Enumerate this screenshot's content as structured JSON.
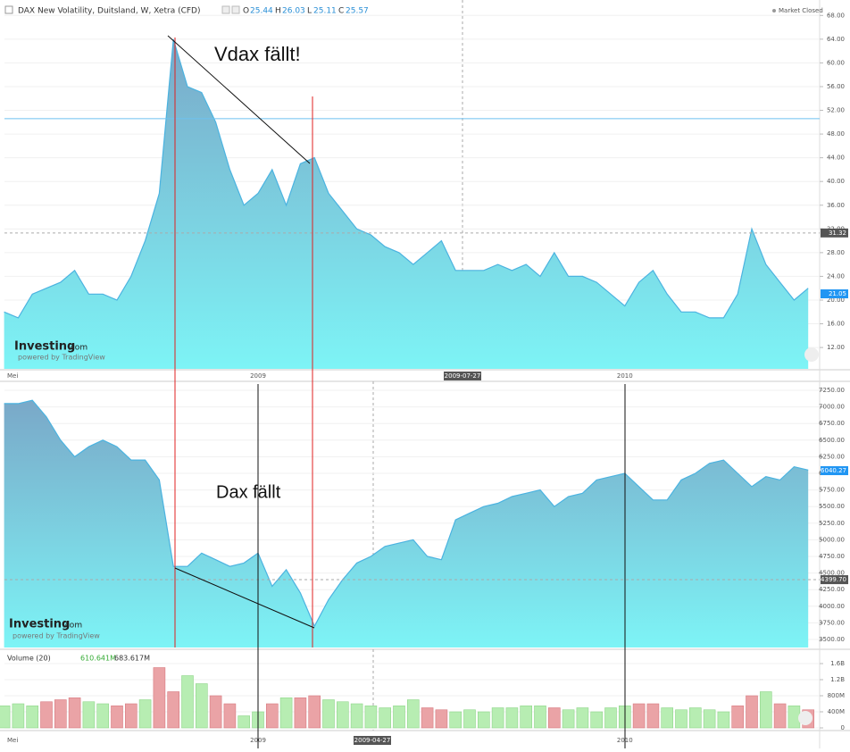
{
  "header": {
    "title": "DAX New Volatility, Duitsland, W, Xetra (CFD)",
    "o_label": "O",
    "open": 25.44,
    "h_label": "H",
    "high": 26.03,
    "l_label": "L",
    "low": 25.11,
    "c_label": "C",
    "close": 25.57,
    "status": "Market Closed"
  },
  "logo": {
    "name": "Investing",
    "domain": ".com",
    "tagline": "powered by TradingView"
  },
  "volume_header": {
    "title": "Volume (20)",
    "value": "610.641M",
    "average": "683.617M"
  },
  "chart_data": [
    {
      "type": "area",
      "annotation": "Vdax fällt!",
      "color": "#4bb3e0",
      "cursor_x_label": "2009-07-27",
      "categories": [
        "Mei",
        null,
        null,
        null,
        null,
        null,
        null,
        null,
        null,
        null,
        null,
        null,
        null,
        null,
        null,
        null,
        null,
        null,
        "2009",
        null,
        null,
        null,
        null,
        null,
        null,
        null,
        null,
        null,
        null,
        null,
        null,
        null,
        null,
        null,
        null,
        null,
        null,
        null,
        null,
        null,
        null,
        null,
        null,
        null,
        "2010",
        null,
        null,
        null,
        null,
        null,
        null,
        null,
        null,
        null,
        null,
        null,
        null,
        null
      ],
      "values": [
        18,
        17,
        21,
        22,
        23,
        25,
        21,
        21,
        20,
        24,
        30,
        38,
        64,
        56,
        55,
        50,
        42,
        36,
        38,
        42,
        36,
        43,
        44,
        38,
        35,
        32,
        31,
        29,
        28,
        26,
        28,
        30,
        25,
        25,
        25,
        26,
        25,
        26,
        24,
        28,
        24,
        24,
        23,
        21,
        19,
        23,
        25,
        21,
        18,
        18,
        17,
        17,
        21,
        32,
        26,
        23,
        20,
        22
      ],
      "ylim": [
        8.4,
        69.1
      ],
      "yticks": [
        {
          "value": 12,
          "label": "12.00"
        },
        {
          "value": 16,
          "label": "16.00"
        },
        {
          "value": 20,
          "label": "20.00"
        },
        {
          "value": 24,
          "label": "24.00"
        },
        {
          "value": 28,
          "label": "28.00"
        },
        {
          "value": 32,
          "label": "32.00"
        },
        {
          "value": 36,
          "label": "36.00"
        },
        {
          "value": 40,
          "label": "40.00"
        },
        {
          "value": 44,
          "label": "44.00"
        },
        {
          "value": 48,
          "label": "48.00"
        },
        {
          "value": 52,
          "label": "52.00"
        },
        {
          "value": 56,
          "label": "56.00"
        },
        {
          "value": 60,
          "label": "60.00"
        },
        {
          "value": 64,
          "label": "64.00"
        },
        {
          "value": 68,
          "label": "68.00"
        }
      ],
      "hline": 50.6,
      "crosshair": 31.32,
      "last_value": 21.05
    },
    {
      "type": "area",
      "annotation": "Dax fällt",
      "color": "#4bb3e0",
      "values": [
        7050,
        7050,
        7100,
        6850,
        6500,
        6250,
        6400,
        6500,
        6400,
        6200,
        6200,
        5900,
        4600,
        4600,
        4800,
        4700,
        4600,
        4650,
        4800,
        4300,
        4550,
        4200,
        3700,
        4100,
        4400,
        4650,
        4750,
        4900,
        4950,
        5000,
        4750,
        4700,
        5300,
        5400,
        5500,
        5550,
        5650,
        5700,
        5750,
        5500,
        5650,
        5700,
        5900,
        5950,
        6000,
        5800,
        5600,
        5600,
        5900,
        6000,
        6150,
        6200,
        6000,
        5800,
        5950,
        5900,
        6100,
        6050
      ],
      "ylim": [
        3379,
        7371
      ],
      "yticks": [
        {
          "value": 3500,
          "label": "3500.00"
        },
        {
          "value": 3750,
          "label": "3750.00"
        },
        {
          "value": 4000,
          "label": "4000.00"
        },
        {
          "value": 4250,
          "label": "4250.00"
        },
        {
          "value": 4500,
          "label": "4500.00"
        },
        {
          "value": 4750,
          "label": "4750.00"
        },
        {
          "value": 5000,
          "label": "5000.00"
        },
        {
          "value": 5250,
          "label": "5250.00"
        },
        {
          "value": 5500,
          "label": "5500.00"
        },
        {
          "value": 5750,
          "label": "5750.00"
        },
        {
          "value": 6000,
          "label": "6000.00"
        },
        {
          "value": 6250,
          "label": "6250.00"
        },
        {
          "value": 6500,
          "label": "6500.00"
        },
        {
          "value": 6750,
          "label": "6750.00"
        },
        {
          "value": 7000,
          "label": "7000.00"
        },
        {
          "value": 7250,
          "label": "7250.00"
        }
      ],
      "crosshair": {
        "value": 4399.7,
        "label": "4399.70"
      },
      "last_value": 6040.27
    },
    {
      "type": "bar",
      "up_color": "#b7edb2",
      "down_color": "#eaa3a6",
      "cursor_x_label": "2009-04-27",
      "categories": [
        "Mei",
        null,
        null,
        null,
        null,
        null,
        null,
        null,
        null,
        null,
        null,
        null,
        null,
        null,
        null,
        null,
        null,
        null,
        "2009",
        null,
        null,
        null,
        null,
        null,
        null,
        null,
        null,
        null,
        null,
        null,
        null,
        null,
        null,
        null,
        null,
        null,
        null,
        null,
        null,
        null,
        null,
        null,
        null,
        null,
        "2010",
        null,
        null,
        null,
        null,
        null,
        null,
        null,
        null,
        null,
        null,
        null,
        null,
        null
      ],
      "values": [
        550000000.0,
        600000000.0,
        550000000.0,
        650000000.0,
        700000000.0,
        750000000.0,
        650000000.0,
        600000000.0,
        550000000.0,
        600000000.0,
        700000000.0,
        1500000000.0,
        900000000.0,
        1300000000.0,
        1100000000.0,
        800000000.0,
        600000000.0,
        300000000.0,
        400000000.0,
        600000000.0,
        750000000.0,
        750000000.0,
        800000000.0,
        700000000.0,
        650000000.0,
        600000000.0,
        550000000.0,
        500000000.0,
        550000000.0,
        700000000.0,
        500000000.0,
        450000000.0,
        400000000.0,
        450000000.0,
        400000000.0,
        500000000.0,
        500000000.0,
        550000000.0,
        550000000.0,
        500000000.0,
        450000000.0,
        500000000.0,
        400000000.0,
        500000000.0,
        550000000.0,
        600000000.0,
        600000000.0,
        500000000.0,
        450000000.0,
        500000000.0,
        450000000.0,
        400000000.0,
        550000000.0,
        800000000.0,
        900000000.0,
        600000000.0,
        550000000.0,
        450000000.0
      ],
      "ylim": [
        0,
        1889000000.0
      ],
      "yticks": [
        0,
        {
          "value": 400000000.0,
          "label": "400M"
        },
        {
          "value": 800000000.0,
          "label": "800M"
        },
        {
          "value": 1200000000.0,
          "label": "1.2B"
        },
        {
          "value": 1600000000.0,
          "label": "1.6B"
        }
      ]
    }
  ]
}
